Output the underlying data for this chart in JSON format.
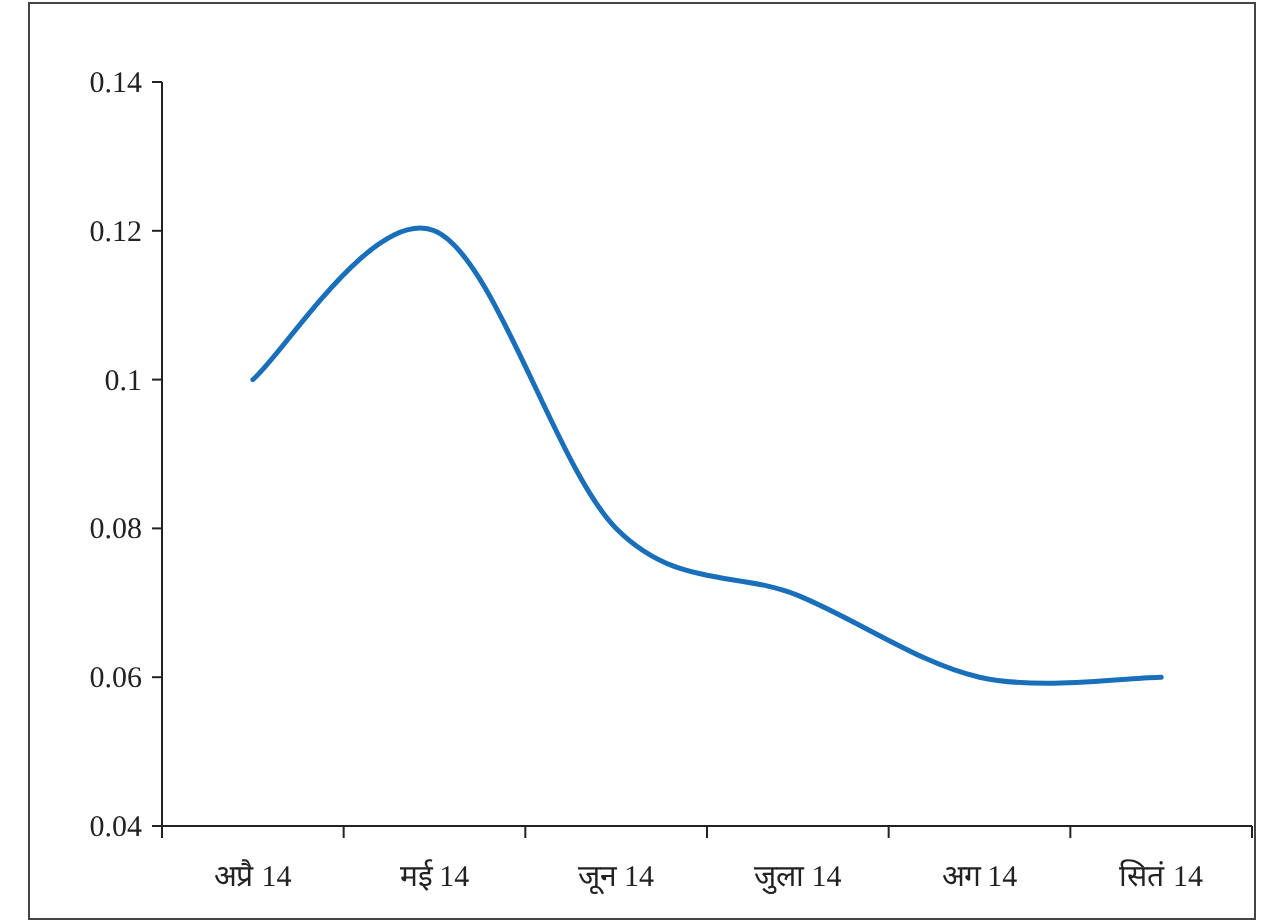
{
  "chart_data": {
    "type": "line",
    "categories": [
      "अप्रै 14",
      "मई 14",
      "जून 14",
      "जुला 14",
      "अग 14",
      "सितं 14"
    ],
    "series": [
      {
        "color": "#1a6fba",
        "values": [
          0.1,
          0.12,
          0.08,
          0.071,
          0.06,
          0.06
        ]
      }
    ],
    "ylim": [
      0.04,
      0.14
    ],
    "yticks": [
      0.04,
      0.06,
      0.08,
      0.1,
      0.12,
      0.14
    ],
    "grid": false,
    "marker": "none",
    "line_style": "solid"
  }
}
